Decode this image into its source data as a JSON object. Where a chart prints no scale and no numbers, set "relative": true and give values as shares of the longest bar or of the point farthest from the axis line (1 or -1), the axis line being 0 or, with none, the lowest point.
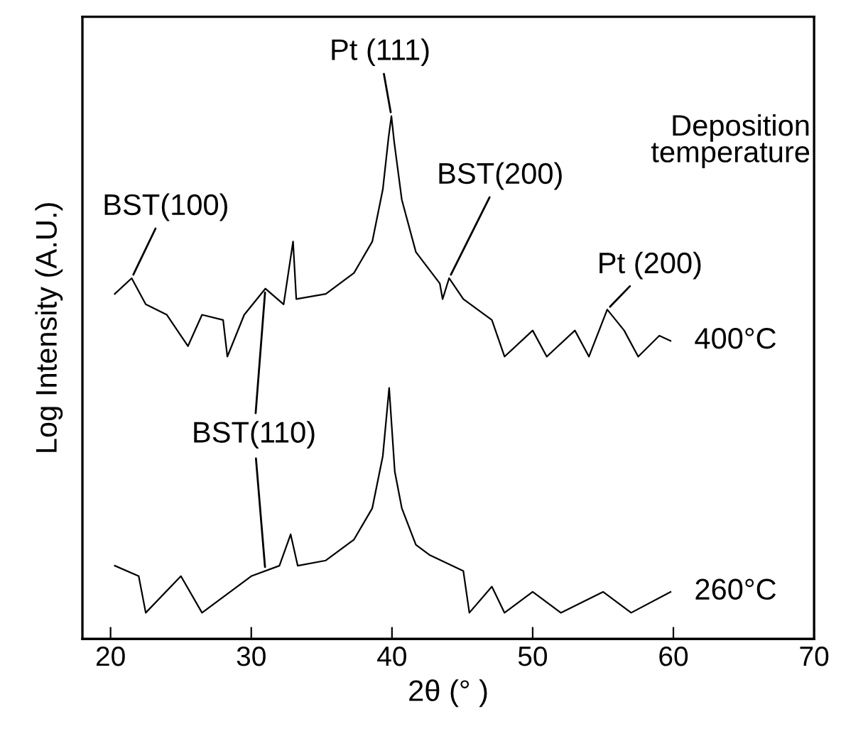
{
  "chart_data": {
    "type": "line",
    "relative": true,
    "xlabel": "2θ (° )",
    "ylabel": "Log Intensity (A.U.)",
    "xlim": [
      18,
      70
    ],
    "xticks": [
      20,
      30,
      40,
      50,
      60,
      70
    ],
    "grid": false,
    "legend": false,
    "marker": "none",
    "line_style": "solid",
    "series": [
      {
        "name": "400°C",
        "color": "#000000",
        "x": [
          20.3,
          21.5,
          22.5,
          24,
          25.5,
          26.5,
          28,
          28.3,
          29.5,
          31,
          32.3,
          32.97,
          33.2,
          35.3,
          37.3,
          38.6,
          39.35,
          39.76,
          39.96,
          40.16,
          40.7,
          41.7,
          43.4,
          43.6,
          44.06,
          45.07,
          47.1,
          48,
          50,
          51,
          53,
          54,
          55.3,
          56.5,
          57.5,
          59,
          59.8
        ],
        "values": [
          0.66,
          0.69,
          0.64,
          0.62,
          0.56,
          0.62,
          0.61,
          0.54,
          0.62,
          0.67,
          0.64,
          0.76,
          0.65,
          0.66,
          0.7,
          0.76,
          0.86,
          0.96,
          1,
          0.95,
          0.84,
          0.74,
          0.68,
          0.65,
          0.69,
          0.65,
          0.61,
          0.54,
          0.59,
          0.54,
          0.59,
          0.54,
          0.63,
          0.59,
          0.54,
          0.58,
          0.57
        ]
      },
      {
        "name": "260°C",
        "color": "#000000",
        "x": [
          20.3,
          22,
          22.5,
          25,
          26.5,
          30,
          32,
          32.8,
          33.3,
          35.3,
          37.3,
          38.6,
          39.35,
          39.8,
          40.2,
          40.7,
          41.7,
          42.7,
          45.07,
          45.5,
          47.1,
          48,
          50,
          52,
          55,
          57,
          59.8
        ],
        "values": [
          0.14,
          0.12,
          0.05,
          0.12,
          0.05,
          0.12,
          0.14,
          0.2,
          0.14,
          0.15,
          0.19,
          0.25,
          0.35,
          0.48,
          0.32,
          0.25,
          0.18,
          0.16,
          0.13,
          0.05,
          0.1,
          0.05,
          0.09,
          0.05,
          0.09,
          0.05,
          0.09
        ]
      }
    ],
    "annotations": [
      {
        "text": "Pt (111)",
        "x": 39.96,
        "y": 1
      },
      {
        "text": "BST(100)",
        "x": 21.5,
        "y": 0.69
      },
      {
        "text": "BST(200)",
        "x": 44.06,
        "y": 0.69
      },
      {
        "text": "Pt (200)",
        "x": 55.3,
        "y": 0.63
      },
      {
        "text": "BST(110)",
        "x": 31,
        "y": 0.67
      },
      "Deposition temperature"
    ]
  }
}
